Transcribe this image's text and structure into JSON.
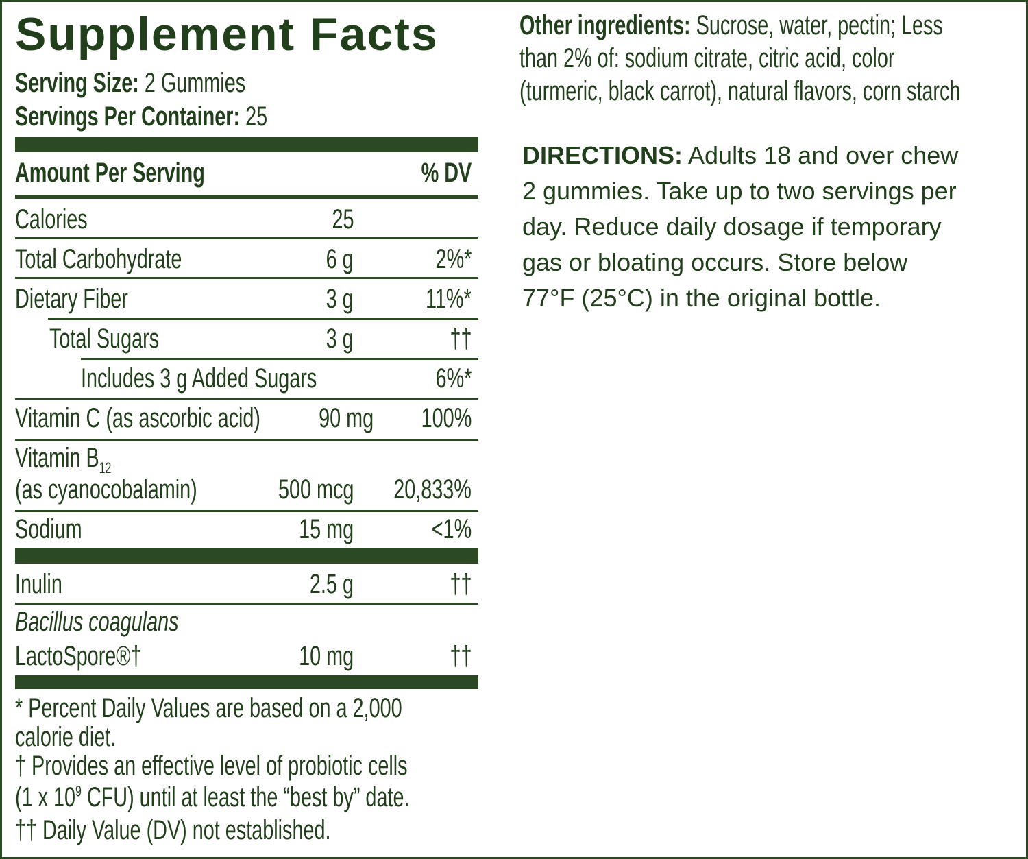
{
  "panel": {
    "title": "Supplement Facts",
    "serving_size": {
      "label": "Serving Size:",
      "value": "2 Gummies"
    },
    "servings_per_container": {
      "label": "Servings Per Container:",
      "value": "25"
    },
    "header": {
      "amount": "Amount Per Serving",
      "dv": "% DV"
    },
    "rows": [
      {
        "name": "Calories",
        "amount": "25"
      },
      {
        "name": "Total Carbohydrate",
        "amount": "6 g",
        "dv": "2%*"
      },
      {
        "name": "Dietary Fiber",
        "amount": "3 g",
        "dv": "11%*"
      },
      {
        "name": "Total Sugars",
        "amount": "3 g",
        "dv": "††"
      },
      {
        "name": "Includes 3 g Added Sugars",
        "dv": "6%*"
      },
      {
        "name": "Vitamin C (as ascorbic acid)",
        "amount": "90 mg",
        "dv": "100%"
      },
      {
        "name": "Vitamin B",
        "subscript": "12",
        "detail": "(as cyanocobalamin)",
        "amount": "500 mcg",
        "dv": "20,833%"
      },
      {
        "name": "Sodium",
        "amount": "15 mg",
        "dv": "<1%"
      },
      {
        "name": "Inulin",
        "amount": "2.5 g",
        "dv": "††"
      },
      {
        "name": "Bacillus coagulans",
        "detail": "LactoSpore®†",
        "amount": "10 mg",
        "dv": "††"
      }
    ],
    "footnotes": [
      {
        "lines": [
          "* Percent Daily Values are based on a 2,000",
          "calorie diet."
        ]
      },
      {
        "lines": [
          "† Provides an effective level of probiotic cells"
        ],
        "text_before": "(1 x 10",
        "superscript": "9",
        "text_after": " CFU) until at least the “best by” date."
      },
      {
        "lines": [
          "†† Daily Value (DV) not established."
        ]
      }
    ]
  },
  "other_ingredients": {
    "label": "Other ingredients:",
    "lines": [
      "Sucrose, water, pectin; Less",
      "than 2% of: sodium citrate, citric acid, color",
      "(turmeric, black carrot), natural flavors, corn starch"
    ]
  },
  "directions": {
    "label": "DIRECTIONS:",
    "lines": [
      "Adults 18 and over chew",
      "2 gummies. Take up to two servings per",
      "day. Reduce daily dosage if temporary",
      "gas or bloating occurs. Store below",
      "77°F (25°C) in the original bottle."
    ]
  }
}
